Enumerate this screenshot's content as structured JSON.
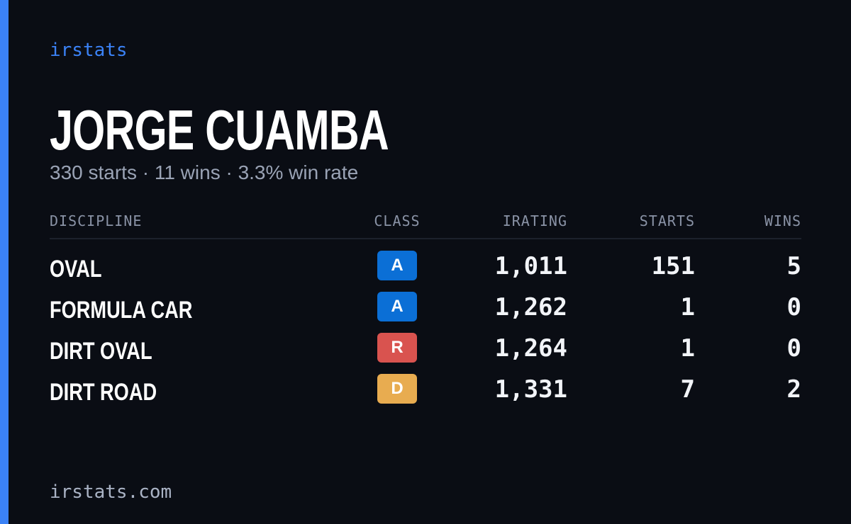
{
  "brand": "irstats",
  "driver": {
    "name": "JORGE CUAMBA",
    "summary": "330 starts · 11 wins · 3.3% win rate"
  },
  "table": {
    "headers": [
      "DISCIPLINE",
      "CLASS",
      "IRATING",
      "STARTS",
      "WINS"
    ],
    "rows": [
      {
        "discipline": "OVAL",
        "class": "A",
        "class_color": "#0b6fd6",
        "irating": "1,011",
        "starts": "151",
        "wins": "5"
      },
      {
        "discipline": "FORMULA CAR",
        "class": "A",
        "class_color": "#0b6fd6",
        "irating": "1,262",
        "starts": "1",
        "wins": "0"
      },
      {
        "discipline": "DIRT OVAL",
        "class": "R",
        "class_color": "#d9534f",
        "irating": "1,264",
        "starts": "1",
        "wins": "0"
      },
      {
        "discipline": "DIRT ROAD",
        "class": "D",
        "class_color": "#e8ac50",
        "irating": "1,331",
        "starts": "7",
        "wins": "2"
      }
    ]
  },
  "footer": "irstats.com"
}
